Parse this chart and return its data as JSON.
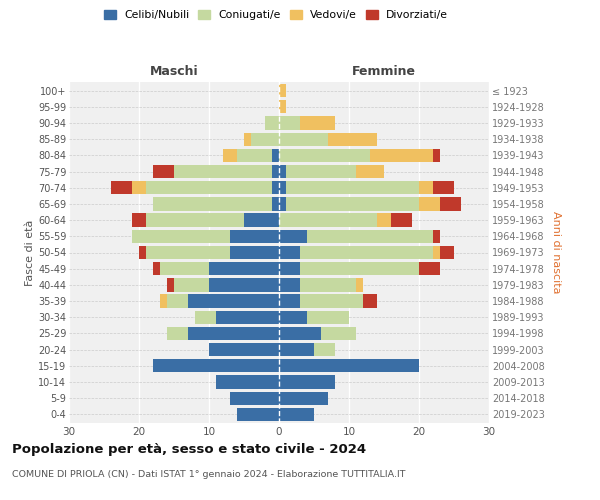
{
  "age_groups": [
    "0-4",
    "5-9",
    "10-14",
    "15-19",
    "20-24",
    "25-29",
    "30-34",
    "35-39",
    "40-44",
    "45-49",
    "50-54",
    "55-59",
    "60-64",
    "65-69",
    "70-74",
    "75-79",
    "80-84",
    "85-89",
    "90-94",
    "95-99",
    "100+"
  ],
  "birth_years": [
    "2019-2023",
    "2014-2018",
    "2009-2013",
    "2004-2008",
    "1999-2003",
    "1994-1998",
    "1989-1993",
    "1984-1988",
    "1979-1983",
    "1974-1978",
    "1969-1973",
    "1964-1968",
    "1959-1963",
    "1954-1958",
    "1949-1953",
    "1944-1948",
    "1939-1943",
    "1934-1938",
    "1929-1933",
    "1924-1928",
    "≤ 1923"
  ],
  "male_celibe": [
    6,
    7,
    9,
    18,
    10,
    13,
    9,
    13,
    10,
    10,
    7,
    7,
    5,
    1,
    1,
    1,
    1,
    0,
    0,
    0,
    0
  ],
  "male_coniugato": [
    0,
    0,
    0,
    0,
    0,
    3,
    3,
    3,
    5,
    7,
    12,
    14,
    14,
    17,
    18,
    14,
    5,
    4,
    2,
    0,
    0
  ],
  "male_vedovo": [
    0,
    0,
    0,
    0,
    0,
    0,
    0,
    1,
    0,
    0,
    0,
    0,
    0,
    0,
    2,
    0,
    2,
    1,
    0,
    0,
    0
  ],
  "male_divorziato": [
    0,
    0,
    0,
    0,
    0,
    0,
    0,
    0,
    1,
    1,
    1,
    0,
    2,
    0,
    3,
    3,
    0,
    0,
    0,
    0,
    0
  ],
  "female_celibe": [
    5,
    7,
    8,
    20,
    5,
    6,
    4,
    3,
    3,
    3,
    3,
    4,
    0,
    1,
    1,
    1,
    0,
    0,
    0,
    0,
    0
  ],
  "female_coniugato": [
    0,
    0,
    0,
    0,
    3,
    5,
    6,
    9,
    8,
    17,
    19,
    18,
    14,
    19,
    19,
    10,
    13,
    7,
    3,
    0,
    0
  ],
  "female_vedovo": [
    0,
    0,
    0,
    0,
    0,
    0,
    0,
    0,
    1,
    0,
    1,
    0,
    2,
    3,
    2,
    4,
    9,
    7,
    5,
    1,
    1
  ],
  "female_divorziato": [
    0,
    0,
    0,
    0,
    0,
    0,
    0,
    2,
    0,
    3,
    2,
    1,
    3,
    3,
    3,
    0,
    1,
    0,
    0,
    0,
    0
  ],
  "colors": {
    "celibe": "#3a6ea5",
    "coniugato": "#c5d9a0",
    "vedovo": "#f0c060",
    "divorziato": "#c0392b"
  },
  "title": "Popolazione per età, sesso e stato civile - 2024",
  "subtitle": "COMUNE DI PRIOLA (CN) - Dati ISTAT 1° gennaio 2024 - Elaborazione TUTTITALIA.IT",
  "ylabel_left": "Fasce di età",
  "ylabel_right": "Anni di nascita",
  "xlabel_left": "Maschi",
  "xlabel_right": "Femmine",
  "xlim": 30
}
